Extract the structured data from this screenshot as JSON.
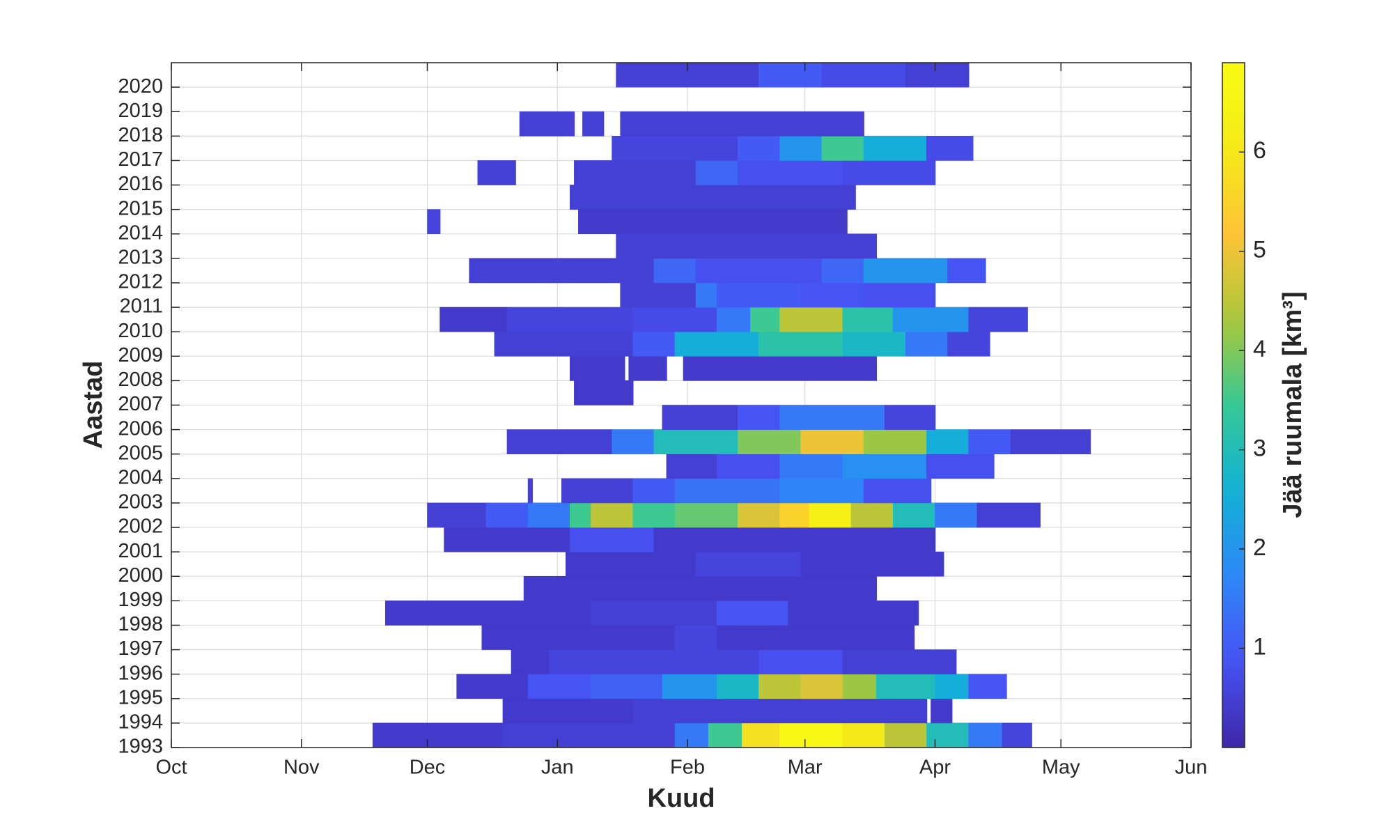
{
  "chart_data": {
    "type": "heatmap",
    "xlabel": "Kuud",
    "ylabel": "Aastad",
    "colorbar_label": "Jää ruumala [km³]",
    "colormap": "parula",
    "xlim": [
      0,
      243
    ],
    "xticks": [
      {
        "value": 0,
        "label": "Oct"
      },
      {
        "value": 31,
        "label": "Nov"
      },
      {
        "value": 61,
        "label": "Dec"
      },
      {
        "value": 92,
        "label": "Jan"
      },
      {
        "value": 123,
        "label": "Feb"
      },
      {
        "value": 151,
        "label": "Mar"
      },
      {
        "value": 182,
        "label": "Apr"
      },
      {
        "value": 212,
        "label": "May"
      },
      {
        "value": 243,
        "label": "Jun"
      }
    ],
    "ylim": [
      1993,
      2021
    ],
    "yticks": [
      1993,
      1994,
      1995,
      1996,
      1997,
      1998,
      1999,
      2000,
      2001,
      2002,
      2003,
      2004,
      2005,
      2006,
      2007,
      2008,
      2009,
      2010,
      2011,
      2012,
      2013,
      2014,
      2015,
      2016,
      2017,
      2018,
      2019,
      2020
    ],
    "clim": [
      0,
      6.9
    ],
    "cticks": [
      1,
      2,
      3,
      4,
      5,
      6
    ],
    "grid": true,
    "rows": [
      {
        "y": 1993,
        "segments": [
          [
            48,
            79,
            0.4
          ],
          [
            79,
            120,
            0.5
          ],
          [
            120,
            128,
            1.5
          ],
          [
            128,
            136,
            3.5
          ],
          [
            136,
            145,
            5.8
          ],
          [
            145,
            160,
            6.7
          ],
          [
            160,
            170,
            6
          ],
          [
            170,
            180,
            4.5
          ],
          [
            180,
            190,
            3
          ],
          [
            190,
            198,
            1.5
          ],
          [
            198,
            205,
            0.6
          ]
        ]
      },
      {
        "y": 1994,
        "segments": [
          [
            79,
            110,
            0.4
          ],
          [
            110,
            180,
            0.5
          ],
          [
            181,
            186,
            0.4
          ]
        ]
      },
      {
        "y": 1995,
        "segments": [
          [
            68,
            85,
            0.4
          ],
          [
            85,
            100,
            0.9
          ],
          [
            100,
            117,
            1.1
          ],
          [
            117,
            130,
            2
          ],
          [
            130,
            140,
            2.8
          ],
          [
            140,
            150,
            4.5
          ],
          [
            150,
            160,
            4.8
          ],
          [
            160,
            168,
            4.2
          ],
          [
            168,
            182,
            3
          ],
          [
            182,
            190,
            2.5
          ],
          [
            190,
            199,
            0.9
          ]
        ]
      },
      {
        "y": 1996,
        "segments": [
          [
            81,
            90,
            0.4
          ],
          [
            90,
            140,
            0.6
          ],
          [
            140,
            160,
            0.8
          ],
          [
            160,
            187,
            0.5
          ]
        ]
      },
      {
        "y": 1997,
        "segments": [
          [
            74,
            120,
            0.4
          ],
          [
            120,
            130,
            0.6
          ],
          [
            130,
            177,
            0.4
          ]
        ]
      },
      {
        "y": 1998,
        "segments": [
          [
            51,
            100,
            0.4
          ],
          [
            100,
            130,
            0.5
          ],
          [
            130,
            147,
            0.9
          ],
          [
            147,
            178,
            0.4
          ]
        ]
      },
      {
        "y": 1999,
        "segments": [
          [
            84,
            168,
            0.4
          ]
        ]
      },
      {
        "y": 2000,
        "segments": [
          [
            94,
            125,
            0.4
          ],
          [
            125,
            150,
            0.6
          ],
          [
            150,
            184,
            0.4
          ]
        ]
      },
      {
        "y": 2001,
        "segments": [
          [
            65,
            95,
            0.4
          ],
          [
            95,
            115,
            0.8
          ],
          [
            115,
            182,
            0.4
          ]
        ]
      },
      {
        "y": 2002,
        "segments": [
          [
            61,
            75,
            0.5
          ],
          [
            75,
            85,
            1
          ],
          [
            85,
            95,
            1.5
          ],
          [
            95,
            100,
            3.5
          ],
          [
            100,
            110,
            4.5
          ],
          [
            110,
            120,
            3.5
          ],
          [
            120,
            135,
            3.8
          ],
          [
            135,
            145,
            4.8
          ],
          [
            145,
            152,
            5.5
          ],
          [
            152,
            162,
            6.3
          ],
          [
            162,
            172,
            4.5
          ],
          [
            172,
            182,
            3
          ],
          [
            182,
            192,
            1.5
          ],
          [
            192,
            207,
            0.5
          ]
        ]
      },
      {
        "y": 2003,
        "segments": [
          [
            85,
            86,
            0.5
          ],
          [
            93,
            110,
            0.5
          ],
          [
            110,
            120,
            1
          ],
          [
            120,
            145,
            1.4
          ],
          [
            145,
            165,
            1.7
          ],
          [
            165,
            181,
            0.8
          ]
        ]
      },
      {
        "y": 2004,
        "segments": [
          [
            118,
            130,
            0.5
          ],
          [
            130,
            145,
            0.8
          ],
          [
            145,
            160,
            1.5
          ],
          [
            160,
            180,
            1.9
          ],
          [
            180,
            196,
            0.8
          ]
        ]
      },
      {
        "y": 2005,
        "segments": [
          [
            80,
            105,
            0.5
          ],
          [
            105,
            115,
            1.5
          ],
          [
            115,
            135,
            3
          ],
          [
            135,
            150,
            4
          ],
          [
            150,
            165,
            5
          ],
          [
            165,
            180,
            4.2
          ],
          [
            180,
            190,
            2.5
          ],
          [
            190,
            200,
            1
          ],
          [
            200,
            219,
            0.5
          ]
        ]
      },
      {
        "y": 2006,
        "segments": [
          [
            117,
            135,
            0.5
          ],
          [
            135,
            145,
            0.9
          ],
          [
            145,
            170,
            1.5
          ],
          [
            170,
            182,
            0.6
          ]
        ]
      },
      {
        "y": 2007,
        "segments": [
          [
            96,
            110,
            0.4
          ]
        ]
      },
      {
        "y": 2008,
        "segments": [
          [
            95,
            108,
            0.4
          ],
          [
            109,
            118,
            0.4
          ],
          [
            122,
            168,
            0.4
          ]
        ]
      },
      {
        "y": 2009,
        "segments": [
          [
            77,
            110,
            0.5
          ],
          [
            110,
            120,
            1
          ],
          [
            120,
            140,
            2.5
          ],
          [
            140,
            160,
            3.2
          ],
          [
            160,
            175,
            2.8
          ],
          [
            175,
            185,
            1.5
          ],
          [
            185,
            195,
            0.6
          ]
        ]
      },
      {
        "y": 2010,
        "segments": [
          [
            64,
            80,
            0.4
          ],
          [
            80,
            110,
            0.6
          ],
          [
            110,
            130,
            0.7
          ],
          [
            130,
            138,
            1.5
          ],
          [
            138,
            145,
            3.5
          ],
          [
            145,
            160,
            4.5
          ],
          [
            160,
            172,
            3.2
          ],
          [
            172,
            190,
            2
          ],
          [
            190,
            204,
            0.6
          ]
        ]
      },
      {
        "y": 2011,
        "segments": [
          [
            107,
            125,
            0.5
          ],
          [
            125,
            130,
            1.5
          ],
          [
            130,
            150,
            1
          ],
          [
            150,
            165,
            0.9
          ],
          [
            165,
            182,
            0.8
          ]
        ]
      },
      {
        "y": 2012,
        "segments": [
          [
            71,
            115,
            0.5
          ],
          [
            115,
            125,
            1.2
          ],
          [
            125,
            155,
            0.8
          ],
          [
            155,
            165,
            1.2
          ],
          [
            165,
            185,
            2
          ],
          [
            185,
            194,
            0.9
          ]
        ]
      },
      {
        "y": 2013,
        "segments": [
          [
            106,
            168,
            0.5
          ]
        ]
      },
      {
        "y": 2014,
        "segments": [
          [
            61,
            64,
            0.6
          ],
          [
            97,
            161,
            0.4
          ]
        ]
      },
      {
        "y": 2015,
        "segments": [
          [
            95,
            163,
            0.5
          ]
        ]
      },
      {
        "y": 2016,
        "segments": [
          [
            73,
            82,
            0.5
          ],
          [
            96,
            125,
            0.5
          ],
          [
            125,
            135,
            1.2
          ],
          [
            135,
            160,
            0.8
          ],
          [
            160,
            182,
            0.7
          ]
        ]
      },
      {
        "y": 2017,
        "segments": [
          [
            105,
            135,
            0.6
          ],
          [
            135,
            145,
            1
          ],
          [
            145,
            155,
            2
          ],
          [
            155,
            165,
            3.5
          ],
          [
            165,
            180,
            2.5
          ],
          [
            180,
            191,
            0.7
          ]
        ]
      },
      {
        "y": 2018,
        "segments": [
          [
            83,
            96,
            0.5
          ],
          [
            98,
            103,
            0.5
          ],
          [
            107,
            165,
            0.5
          ]
        ]
      },
      {
        "y": 2019,
        "segments": []
      },
      {
        "y": 2020,
        "segments": [
          [
            106,
            140,
            0.5
          ],
          [
            140,
            155,
            1
          ],
          [
            155,
            175,
            0.7
          ],
          [
            175,
            190,
            0.5
          ]
        ]
      }
    ]
  }
}
